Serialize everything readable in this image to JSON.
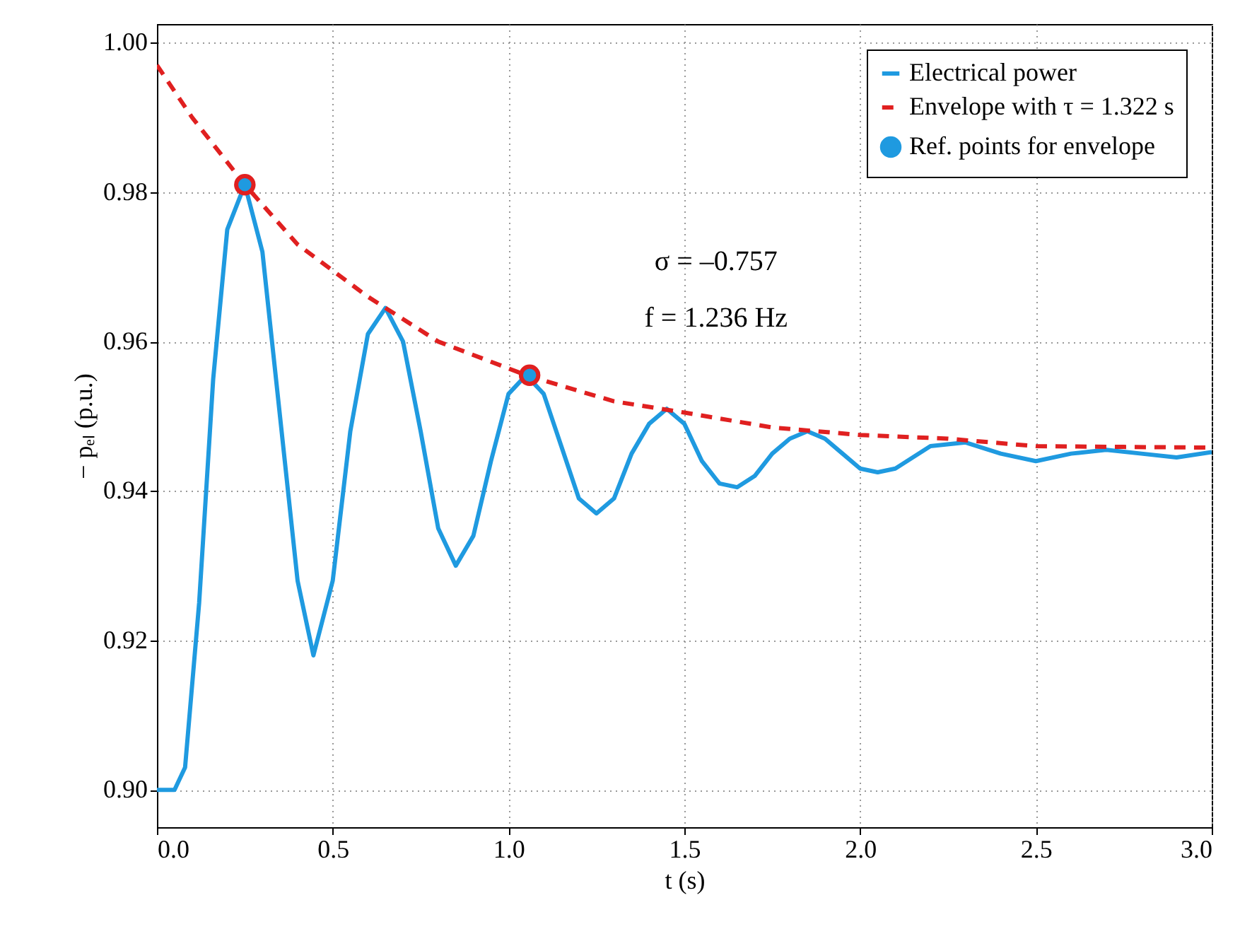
{
  "chart_data": {
    "type": "line",
    "xlabel": "t (s)",
    "ylabel": "− pₑₗ (p.u.)",
    "annotations": [
      "σ = –0.757",
      "f = 1.236 Hz"
    ],
    "xlim": [
      0,
      3
    ],
    "xticks": [
      {
        "value": 0,
        "label": "0.0"
      },
      0.5,
      {
        "value": 1,
        "label": "1.0"
      },
      1.5,
      {
        "value": 2,
        "label": "2.0"
      },
      2.5,
      {
        "value": 3,
        "label": "3.0"
      }
    ],
    "ylim": [
      0.895,
      1.0025
    ],
    "yticks": [
      {
        "value": 0.9,
        "label": "0.90"
      },
      0.92,
      0.94,
      0.96,
      0.98,
      {
        "value": 1,
        "label": "1.00"
      }
    ],
    "grid": true,
    "legend": "top right",
    "series": [
      {
        "name": "Electrical power",
        "color": "#1f9ae0",
        "line_style": "solid",
        "x": [
          0,
          0.05,
          0.08,
          0.12,
          0.16,
          0.2,
          0.25,
          0.3,
          0.35,
          0.4,
          0.445,
          0.5,
          0.55,
          0.6,
          0.65,
          0.7,
          0.75,
          0.8,
          0.85,
          0.9,
          0.95,
          1,
          1.05,
          1.1,
          1.15,
          1.2,
          1.25,
          1.3,
          1.35,
          1.4,
          1.45,
          1.5,
          1.55,
          1.6,
          1.65,
          1.7,
          1.75,
          1.8,
          1.85,
          1.9,
          1.95,
          2,
          2.05,
          2.1,
          2.2,
          2.3,
          2.4,
          2.5,
          2.6,
          2.7,
          2.8,
          2.9,
          3
        ],
        "values": [
          0.9,
          0.9,
          0.903,
          0.925,
          0.955,
          0.975,
          0.981,
          0.972,
          0.95,
          0.928,
          0.918,
          0.928,
          0.948,
          0.961,
          0.9645,
          0.96,
          0.948,
          0.935,
          0.93,
          0.934,
          0.944,
          0.953,
          0.9555,
          0.953,
          0.946,
          0.939,
          0.937,
          0.939,
          0.945,
          0.949,
          0.951,
          0.949,
          0.944,
          0.941,
          0.9405,
          0.942,
          0.945,
          0.947,
          0.948,
          0.947,
          0.945,
          0.943,
          0.9425,
          0.943,
          0.946,
          0.9465,
          0.945,
          0.944,
          0.945,
          0.9455,
          0.945,
          0.9445,
          0.9452
        ]
      },
      {
        "name": "Envelope with τ = 1.322 s",
        "color": "#e02020",
        "line_style": "dashed",
        "x": [
          0,
          0.1,
          0.25,
          0.4,
          0.6,
          0.8,
          1.05,
          1.3,
          1.5,
          1.75,
          2,
          2.25,
          2.5,
          2.75,
          3
        ],
        "values": [
          0.997,
          0.99,
          0.981,
          0.973,
          0.966,
          0.96,
          0.9555,
          0.952,
          0.9505,
          0.9485,
          0.9475,
          0.947,
          0.946,
          0.9459,
          0.9458
        ]
      },
      {
        "name": "Ref. points for envelope",
        "type": "scatter",
        "color": "#1f9ae0",
        "marker": "circle",
        "x": [
          0.25,
          1.06
        ],
        "values": [
          0.981,
          0.9555
        ]
      }
    ]
  }
}
